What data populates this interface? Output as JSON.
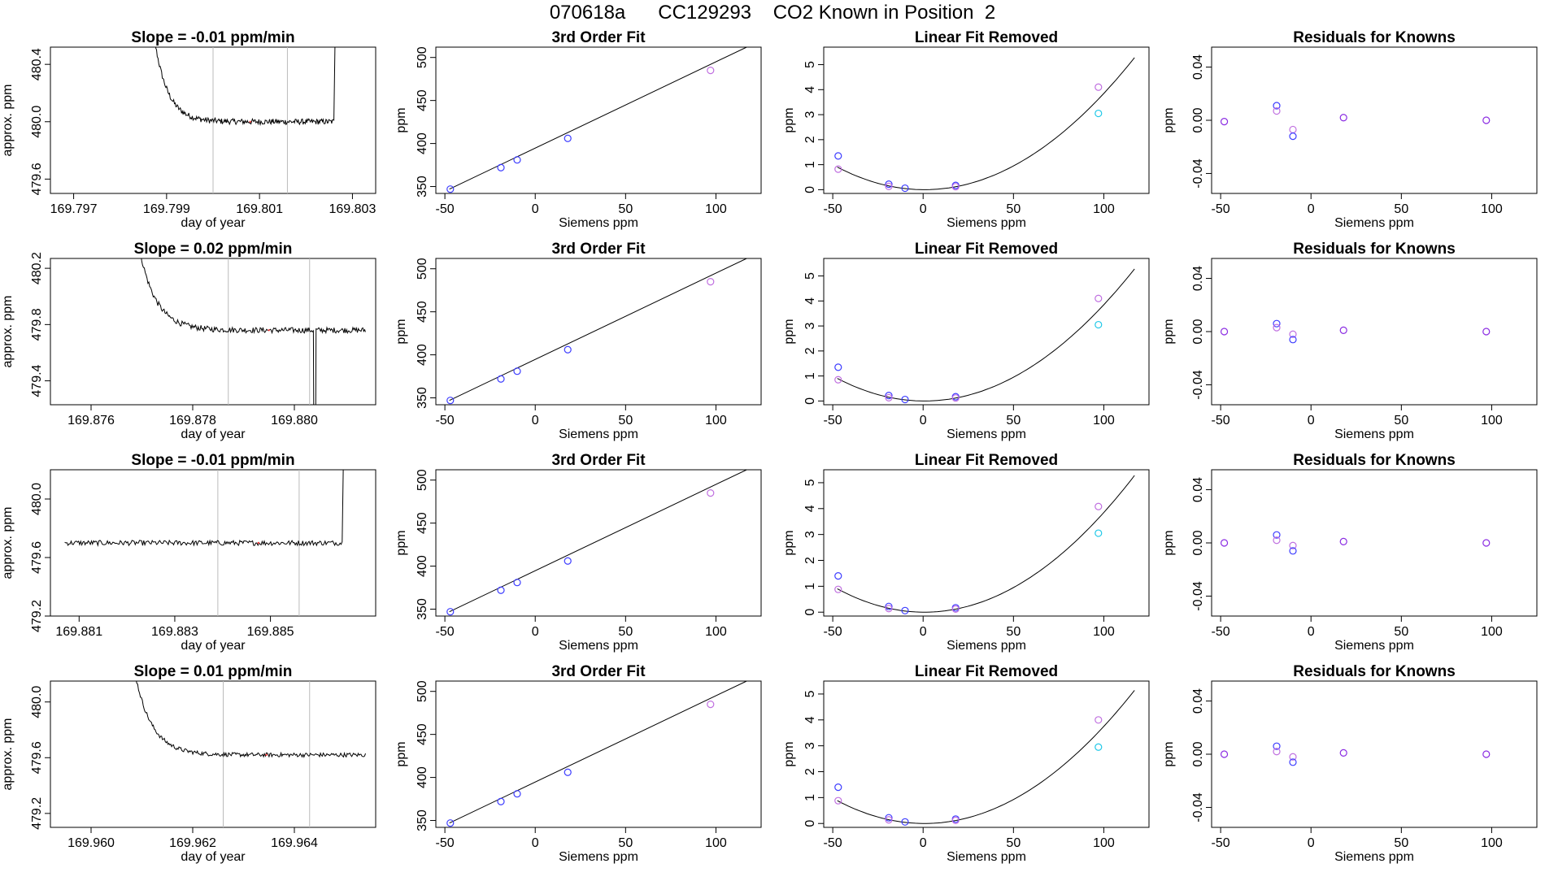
{
  "figure_title": "070618a      CC129293    CO2 Known in Position  2",
  "colors": {
    "trace": "#000000",
    "marker_line": "#bbbbbb",
    "blue": "#3c3cff",
    "violet": "#c070e0",
    "cyan": "#20c8e8",
    "purple": "#8a2be2",
    "red_dot": "#ff4040"
  },
  "chart_data": [
    {
      "type": "line",
      "row": 0,
      "col": 0,
      "title": "Slope =  -0.01  ppm/min",
      "xlabel": "day of year",
      "ylabel": "approx. ppm",
      "xlim": [
        169.7965,
        169.8035
      ],
      "ylim": [
        479.5,
        480.52
      ],
      "xticks": [
        169.797,
        169.799,
        169.801,
        169.803
      ],
      "yticks": [
        479.6,
        480.0,
        480.4
      ],
      "vlines": [
        169.8,
        169.8016
      ],
      "trace": {
        "start": 169.7986,
        "rise": 169.8026,
        "base": 480.0,
        "spread": 0.04
      }
    },
    {
      "type": "line",
      "row": 1,
      "col": 0,
      "title": "Slope =  0.02  ppm/min",
      "xlabel": "day of year",
      "ylabel": "approx. ppm",
      "xlim": [
        169.8752,
        169.8816
      ],
      "ylim": [
        479.23,
        480.27
      ],
      "xticks": [
        169.876,
        169.878,
        169.88
      ],
      "yticks": [
        479.4,
        479.8,
        480.2
      ],
      "vlines": [
        169.8787,
        169.8803
      ],
      "trace": {
        "start": 169.8768,
        "rise": null,
        "base": 479.76,
        "spread": 0.04,
        "end": 169.8814,
        "dip": 169.8804
      }
    },
    {
      "type": "line",
      "row": 2,
      "col": 0,
      "title": "Slope =  -0.01  ppm/min",
      "xlabel": "day of year",
      "ylabel": "approx. ppm",
      "xlim": [
        169.8804,
        169.8872
      ],
      "ylim": [
        479.2,
        480.2
      ],
      "xticks": [
        169.881,
        169.883,
        169.885
      ],
      "yticks": [
        479.2,
        479.6,
        480.0
      ],
      "vlines": [
        169.8839,
        169.8856
      ],
      "trace": {
        "start": 169.8807,
        "rise": 169.8865,
        "base": 479.7,
        "spread": 0.035,
        "flat": true
      }
    },
    {
      "type": "line",
      "row": 3,
      "col": 0,
      "title": "Slope =  0.01  ppm/min",
      "xlabel": "day of year",
      "ylabel": "approx. ppm",
      "xlim": [
        169.9592,
        169.9656
      ],
      "ylim": [
        479.1,
        480.15
      ],
      "xticks": [
        169.96,
        169.962,
        169.964
      ],
      "yticks": [
        479.2,
        479.6,
        480.0
      ],
      "vlines": [
        169.9626,
        169.9643
      ],
      "trace": {
        "start": 169.9607,
        "rise": null,
        "base": 479.62,
        "spread": 0.03,
        "end": 169.9654
      }
    },
    {
      "type": "line",
      "row": 0,
      "col": 1,
      "kind": "fit",
      "title": "3rd Order Fit",
      "xlabel": "Siemens ppm",
      "ylabel": "ppm",
      "xlim": [
        -55,
        125
      ],
      "ylim": [
        342,
        512
      ],
      "xticks": [
        -50,
        0,
        50,
        100
      ],
      "yticks": [
        350,
        400,
        450,
        500
      ],
      "line": [
        [
          -47.5,
          347
        ],
        [
          117,
          512
        ]
      ],
      "points": [
        [
          -47,
          347,
          "blue"
        ],
        [
          -19,
          372,
          "blue"
        ],
        [
          -10,
          381,
          "blue"
        ],
        [
          18,
          406,
          "blue"
        ],
        [
          97,
          485,
          "violet"
        ]
      ]
    },
    {
      "type": "line",
      "row": 1,
      "col": 1,
      "kind": "fit",
      "title": "3rd Order Fit",
      "xlabel": "Siemens ppm",
      "ylabel": "ppm",
      "xlim": [
        -55,
        125
      ],
      "ylim": [
        342,
        512
      ],
      "xticks": [
        -50,
        0,
        50,
        100
      ],
      "yticks": [
        350,
        400,
        450,
        500
      ],
      "line": [
        [
          -47.5,
          347
        ],
        [
          117,
          512
        ]
      ],
      "points": [
        [
          -47,
          347,
          "blue"
        ],
        [
          -19,
          372,
          "blue"
        ],
        [
          -10,
          381,
          "blue"
        ],
        [
          18,
          406,
          "blue"
        ],
        [
          97,
          485,
          "violet"
        ]
      ]
    },
    {
      "type": "line",
      "row": 2,
      "col": 1,
      "kind": "fit",
      "title": "3rd Order Fit",
      "xlabel": "Siemens ppm",
      "ylabel": "ppm",
      "xlim": [
        -55,
        125
      ],
      "ylim": [
        342,
        512
      ],
      "xticks": [
        -50,
        0,
        50,
        100
      ],
      "yticks": [
        350,
        400,
        450,
        500
      ],
      "line": [
        [
          -47.5,
          347
        ],
        [
          117,
          512
        ]
      ],
      "points": [
        [
          -47,
          347,
          "blue"
        ],
        [
          -19,
          372,
          "blue"
        ],
        [
          -10,
          381,
          "blue"
        ],
        [
          18,
          406,
          "blue"
        ],
        [
          97,
          485,
          "violet"
        ]
      ]
    },
    {
      "type": "line",
      "row": 3,
      "col": 1,
      "kind": "fit",
      "title": "3rd Order Fit",
      "xlabel": "Siemens ppm",
      "ylabel": "ppm",
      "xlim": [
        -55,
        125
      ],
      "ylim": [
        342,
        512
      ],
      "xticks": [
        -50,
        0,
        50,
        100
      ],
      "yticks": [
        350,
        400,
        450,
        500
      ],
      "line": [
        [
          -47.5,
          347
        ],
        [
          117,
          512
        ]
      ],
      "points": [
        [
          -47,
          347,
          "blue"
        ],
        [
          -19,
          372,
          "blue"
        ],
        [
          -10,
          381,
          "blue"
        ],
        [
          18,
          406,
          "blue"
        ],
        [
          97,
          485,
          "violet"
        ]
      ]
    },
    {
      "type": "scatter",
      "row": 0,
      "col": 2,
      "kind": "curve",
      "title": "Linear Fit Removed",
      "xlabel": "Siemens ppm",
      "ylabel": "ppm",
      "xlim": [
        -55,
        125
      ],
      "ylim": [
        -0.15,
        5.7
      ],
      "xticks": [
        -50,
        0,
        50,
        100
      ],
      "yticks": [
        0,
        1,
        2,
        3,
        4,
        5
      ],
      "curve": {
        "a": 0.00039,
        "b": -0.0005,
        "c": 0.0,
        "x0": -47.5,
        "x1": 117
      },
      "points": [
        [
          -47,
          1.35,
          "blue"
        ],
        [
          -47,
          0.82,
          "violet"
        ],
        [
          -19,
          0.22,
          "blue"
        ],
        [
          -19,
          0.13,
          "violet"
        ],
        [
          -10,
          0.06,
          "blue"
        ],
        [
          18,
          0.17,
          "blue"
        ],
        [
          18,
          0.12,
          "violet"
        ],
        [
          97,
          4.1,
          "violet"
        ],
        [
          97,
          3.05,
          "cyan"
        ]
      ]
    },
    {
      "type": "scatter",
      "row": 1,
      "col": 2,
      "kind": "curve",
      "title": "Linear Fit Removed",
      "xlabel": "Siemens ppm",
      "ylabel": "ppm",
      "xlim": [
        -55,
        125
      ],
      "ylim": [
        -0.15,
        5.7
      ],
      "xticks": [
        -50,
        0,
        50,
        100
      ],
      "yticks": [
        0,
        1,
        2,
        3,
        4,
        5
      ],
      "curve": {
        "a": 0.00039,
        "b": -0.0005,
        "c": 0.0,
        "x0": -47.5,
        "x1": 117
      },
      "points": [
        [
          -47,
          1.35,
          "blue"
        ],
        [
          -47,
          0.85,
          "violet"
        ],
        [
          -19,
          0.22,
          "blue"
        ],
        [
          -19,
          0.13,
          "violet"
        ],
        [
          -10,
          0.06,
          "blue"
        ],
        [
          18,
          0.17,
          "blue"
        ],
        [
          18,
          0.12,
          "violet"
        ],
        [
          97,
          4.1,
          "violet"
        ],
        [
          97,
          3.05,
          "cyan"
        ]
      ]
    },
    {
      "type": "scatter",
      "row": 2,
      "col": 2,
      "kind": "curve",
      "title": "Linear Fit Removed",
      "xlabel": "Siemens ppm",
      "ylabel": "ppm",
      "xlim": [
        -55,
        125
      ],
      "ylim": [
        -0.15,
        5.5
      ],
      "xticks": [
        -50,
        0,
        50,
        100
      ],
      "yticks": [
        0,
        1,
        2,
        3,
        4,
        5
      ],
      "curve": {
        "a": 0.00039,
        "b": -0.0005,
        "c": 0.0,
        "x0": -47.5,
        "x1": 117
      },
      "points": [
        [
          -47,
          1.4,
          "blue"
        ],
        [
          -47,
          0.88,
          "violet"
        ],
        [
          -19,
          0.22,
          "blue"
        ],
        [
          -19,
          0.14,
          "violet"
        ],
        [
          -10,
          0.06,
          "blue"
        ],
        [
          18,
          0.17,
          "blue"
        ],
        [
          18,
          0.12,
          "violet"
        ],
        [
          97,
          4.08,
          "violet"
        ],
        [
          97,
          3.05,
          "cyan"
        ]
      ]
    },
    {
      "type": "scatter",
      "row": 3,
      "col": 2,
      "kind": "curve",
      "title": "Linear Fit Removed",
      "xlabel": "Siemens ppm",
      "ylabel": "ppm",
      "xlim": [
        -55,
        125
      ],
      "ylim": [
        -0.15,
        5.5
      ],
      "xticks": [
        -50,
        0,
        50,
        100
      ],
      "yticks": [
        0,
        1,
        2,
        3,
        4,
        5
      ],
      "curve": {
        "a": 0.00038,
        "b": -0.0005,
        "c": 0.0,
        "x0": -47.5,
        "x1": 117
      },
      "points": [
        [
          -47,
          1.4,
          "blue"
        ],
        [
          -47,
          0.88,
          "violet"
        ],
        [
          -19,
          0.22,
          "blue"
        ],
        [
          -19,
          0.14,
          "violet"
        ],
        [
          -10,
          0.06,
          "blue"
        ],
        [
          18,
          0.17,
          "blue"
        ],
        [
          18,
          0.12,
          "violet"
        ],
        [
          97,
          4.0,
          "violet"
        ],
        [
          97,
          2.95,
          "cyan"
        ]
      ]
    },
    {
      "type": "scatter",
      "row": 0,
      "col": 3,
      "title": "Residuals for Knowns",
      "xlabel": "Siemens ppm",
      "ylabel": "ppm",
      "xlim": [
        -55,
        125
      ],
      "ylim": [
        -0.055,
        0.055
      ],
      "xticks": [
        -50,
        0,
        50,
        100
      ],
      "yticks": [
        -0.04,
        0.0,
        0.04
      ],
      "ytick_labels": [
        "-0.04",
        "0.00",
        "0.04"
      ],
      "points": [
        [
          -48,
          -0.001,
          "purple"
        ],
        [
          -19,
          0.011,
          "blue"
        ],
        [
          -19,
          0.007,
          "violet"
        ],
        [
          -10,
          -0.007,
          "violet"
        ],
        [
          -10,
          -0.012,
          "blue"
        ],
        [
          18,
          0.002,
          "purple"
        ],
        [
          97,
          0.0,
          "purple"
        ]
      ]
    },
    {
      "type": "scatter",
      "row": 1,
      "col": 3,
      "title": "Residuals for Knowns",
      "xlabel": "Siemens ppm",
      "ylabel": "ppm",
      "xlim": [
        -55,
        125
      ],
      "ylim": [
        -0.055,
        0.055
      ],
      "xticks": [
        -50,
        0,
        50,
        100
      ],
      "yticks": [
        -0.04,
        0.0,
        0.04
      ],
      "ytick_labels": [
        "-0.04",
        "0.00",
        "0.04"
      ],
      "points": [
        [
          -48,
          0.0,
          "purple"
        ],
        [
          -19,
          0.006,
          "blue"
        ],
        [
          -19,
          0.003,
          "violet"
        ],
        [
          -10,
          -0.002,
          "violet"
        ],
        [
          -10,
          -0.006,
          "blue"
        ],
        [
          18,
          0.001,
          "purple"
        ],
        [
          97,
          0.0,
          "purple"
        ]
      ]
    },
    {
      "type": "scatter",
      "row": 2,
      "col": 3,
      "title": "Residuals for Knowns",
      "xlabel": "Siemens ppm",
      "ylabel": "ppm",
      "xlim": [
        -55,
        125
      ],
      "ylim": [
        -0.055,
        0.055
      ],
      "xticks": [
        -50,
        0,
        50,
        100
      ],
      "yticks": [
        -0.04,
        0.0,
        0.04
      ],
      "ytick_labels": [
        "-0.04",
        "0.00",
        "0.04"
      ],
      "points": [
        [
          -48,
          0.0,
          "purple"
        ],
        [
          -19,
          0.006,
          "blue"
        ],
        [
          -19,
          0.002,
          "violet"
        ],
        [
          -10,
          -0.002,
          "violet"
        ],
        [
          -10,
          -0.006,
          "blue"
        ],
        [
          18,
          0.001,
          "purple"
        ],
        [
          97,
          0.0,
          "purple"
        ]
      ]
    },
    {
      "type": "scatter",
      "row": 3,
      "col": 3,
      "title": "Residuals for Knowns",
      "xlabel": "Siemens ppm",
      "ylabel": "ppm",
      "xlim": [
        -55,
        125
      ],
      "ylim": [
        -0.055,
        0.055
      ],
      "xticks": [
        -50,
        0,
        50,
        100
      ],
      "yticks": [
        -0.04,
        0.0,
        0.04
      ],
      "ytick_labels": [
        "-0.04",
        "0.00",
        "0.04"
      ],
      "points": [
        [
          -48,
          0.0,
          "purple"
        ],
        [
          -19,
          0.006,
          "blue"
        ],
        [
          -19,
          0.002,
          "violet"
        ],
        [
          -10,
          -0.002,
          "violet"
        ],
        [
          -10,
          -0.006,
          "blue"
        ],
        [
          18,
          0.001,
          "purple"
        ],
        [
          97,
          0.0,
          "purple"
        ]
      ]
    }
  ]
}
